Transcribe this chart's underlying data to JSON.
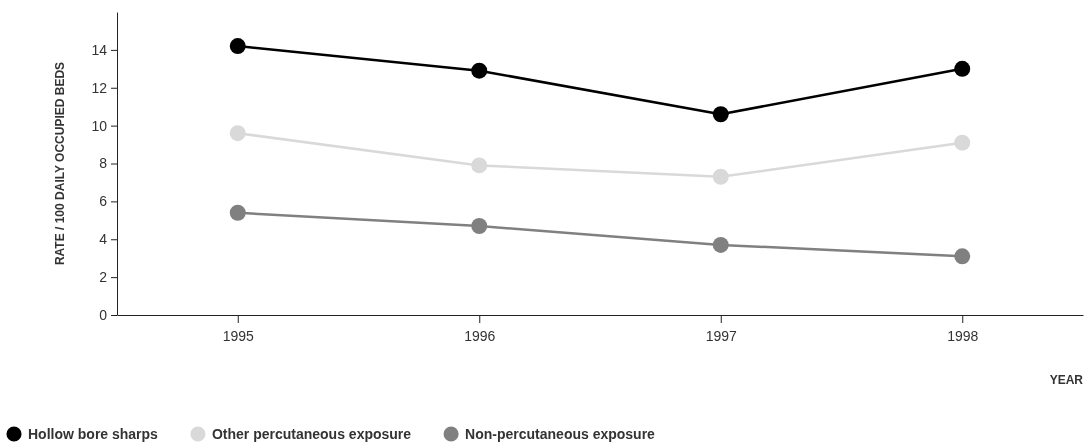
{
  "chart_data": {
    "type": "line",
    "xlabel": "YEAR",
    "ylabel": "RATE / 100 DAILY OCCUPIED BEDS",
    "x": [
      1995,
      1996,
      1997,
      1998
    ],
    "xlim": [
      1994.5,
      1998.5
    ],
    "xticks": [
      1995,
      1996,
      1997,
      1998
    ],
    "ylim": [
      0,
      16
    ],
    "yticks": [
      0,
      2,
      4,
      6,
      8,
      10,
      12,
      14
    ],
    "marker": "circle",
    "legend": "bottom",
    "series": [
      {
        "name": "Hollow bore sharps",
        "color": "#000000",
        "values": [
          14.2,
          12.9,
          10.6,
          13.0
        ]
      },
      {
        "name": "Other percutaneous exposure",
        "color": "#d9d9d9",
        "values": [
          9.6,
          7.9,
          7.3,
          9.1
        ]
      },
      {
        "name": "Non-percutaneous exposure",
        "color": "#808080",
        "values": [
          5.4,
          4.7,
          3.7,
          3.1
        ]
      }
    ]
  }
}
